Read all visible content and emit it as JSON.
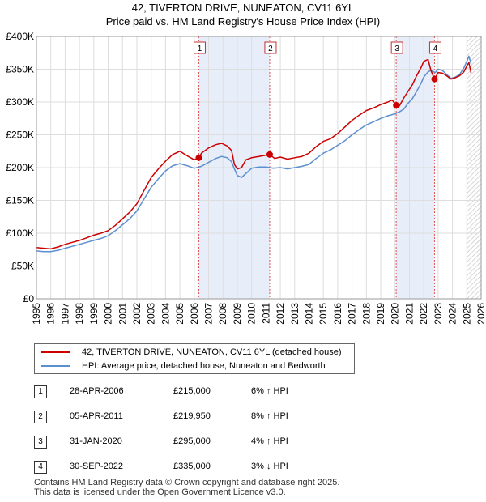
{
  "header": {
    "title": "42, TIVERTON DRIVE, NUNEATON, CV11 6YL",
    "subtitle": "Price paid vs. HM Land Registry's House Price Index (HPI)"
  },
  "chart_data": {
    "type": "line",
    "title": "42, TIVERTON DRIVE, NUNEATON, CV11 6YL",
    "subtitle": "Price paid vs. HM Land Registry's House Price Index (HPI)",
    "xlabel": "",
    "ylabel": "",
    "xlim": [
      1995,
      2026
    ],
    "ylim": [
      0,
      400000
    ],
    "y_ticks": [
      {
        "value": 0,
        "label": "£0"
      },
      {
        "value": 50000,
        "label": "£50K"
      },
      {
        "value": 100000,
        "label": "£100K"
      },
      {
        "value": 150000,
        "label": "£150K"
      },
      {
        "value": 200000,
        "label": "£200K"
      },
      {
        "value": 250000,
        "label": "£250K"
      },
      {
        "value": 300000,
        "label": "£300K"
      },
      {
        "value": 350000,
        "label": "£350K"
      },
      {
        "value": 400000,
        "label": "£400K"
      }
    ],
    "x_ticks": [
      "1995",
      "1996",
      "1997",
      "1998",
      "1999",
      "2000",
      "2001",
      "2002",
      "2003",
      "2004",
      "2005",
      "2006",
      "2007",
      "2008",
      "2009",
      "2010",
      "2011",
      "2012",
      "2013",
      "2014",
      "2015",
      "2016",
      "2017",
      "2018",
      "2019",
      "2020",
      "2021",
      "2022",
      "2023",
      "2024",
      "2025",
      "2026"
    ],
    "grid": true,
    "shaded_periods": [
      [
        2006.32,
        2011.26
      ],
      [
        2020.08,
        2022.75
      ]
    ],
    "future_hatch_from": 2025.0,
    "series": [
      {
        "name": "42, TIVERTON DRIVE, NUNEATON, CV11 6YL (detached house)",
        "color": "#cc0000",
        "x": [
          1995.0,
          1995.5,
          1996.0,
          1996.5,
          1997.0,
          1997.5,
          1998.0,
          1998.5,
          1999.0,
          1999.5,
          2000.0,
          2000.5,
          2001.0,
          2001.5,
          2002.0,
          2002.5,
          2003.0,
          2003.5,
          2004.0,
          2004.5,
          2005.0,
          2005.5,
          2006.0,
          2006.32,
          2006.5,
          2007.0,
          2007.5,
          2007.9,
          2008.3,
          2008.6,
          2008.8,
          2009.0,
          2009.3,
          2009.6,
          2010.0,
          2010.5,
          2011.0,
          2011.26,
          2011.6,
          2012.0,
          2012.5,
          2013.0,
          2013.5,
          2014.0,
          2014.5,
          2015.0,
          2015.5,
          2016.0,
          2016.5,
          2017.0,
          2017.5,
          2018.0,
          2018.5,
          2019.0,
          2019.5,
          2019.8,
          2020.08,
          2020.3,
          2020.6,
          2020.9,
          2021.2,
          2021.5,
          2021.8,
          2022.0,
          2022.3,
          2022.5,
          2022.75,
          2023.0,
          2023.3,
          2023.6,
          2023.9,
          2024.2,
          2024.5,
          2024.8,
          2025.0,
          2025.15,
          2025.3
        ],
        "values": [
          78000,
          77000,
          76000,
          79000,
          83000,
          86000,
          89000,
          93000,
          97000,
          100000,
          104000,
          112000,
          122000,
          132000,
          145000,
          165000,
          185000,
          198000,
          210000,
          220000,
          225000,
          218000,
          212000,
          215000,
          222000,
          230000,
          235000,
          237000,
          233000,
          226000,
          205000,
          198000,
          200000,
          212000,
          215000,
          217000,
          219000,
          219950,
          214000,
          216000,
          213000,
          215000,
          217000,
          222000,
          232000,
          240000,
          244000,
          252000,
          262000,
          272000,
          280000,
          287000,
          291000,
          296000,
          300000,
          303000,
          295000,
          294000,
          306000,
          316000,
          326000,
          340000,
          352000,
          362000,
          365000,
          348000,
          335000,
          345000,
          344000,
          340000,
          335000,
          337000,
          340000,
          346000,
          355000,
          360000,
          344000
        ]
      },
      {
        "name": "HPI: Average price, detached house, Nuneaton and Bedworth",
        "color": "#5b8fcf",
        "x": [
          1995.0,
          1995.5,
          1996.0,
          1996.5,
          1997.0,
          1997.5,
          1998.0,
          1998.5,
          1999.0,
          1999.5,
          2000.0,
          2000.5,
          2001.0,
          2001.5,
          2002.0,
          2002.5,
          2003.0,
          2003.5,
          2004.0,
          2004.5,
          2005.0,
          2005.5,
          2006.0,
          2006.5,
          2007.0,
          2007.5,
          2007.9,
          2008.3,
          2008.6,
          2008.8,
          2009.0,
          2009.3,
          2009.6,
          2010.0,
          2010.5,
          2011.0,
          2011.5,
          2012.0,
          2012.5,
          2013.0,
          2013.5,
          2014.0,
          2014.5,
          2015.0,
          2015.5,
          2016.0,
          2016.5,
          2017.0,
          2017.5,
          2018.0,
          2018.5,
          2019.0,
          2019.5,
          2020.0,
          2020.3,
          2020.6,
          2020.9,
          2021.2,
          2021.5,
          2021.8,
          2022.0,
          2022.3,
          2022.5,
          2022.8,
          2023.0,
          2023.3,
          2023.6,
          2023.9,
          2024.2,
          2024.5,
          2024.8,
          2025.0,
          2025.15,
          2025.3
        ],
        "values": [
          73000,
          72000,
          72000,
          74000,
          77000,
          80000,
          83000,
          86000,
          89000,
          92000,
          96000,
          104000,
          113000,
          122000,
          134000,
          152000,
          170000,
          183000,
          195000,
          203000,
          206000,
          203000,
          199000,
          202000,
          208000,
          214000,
          217000,
          215000,
          209000,
          198000,
          188000,
          185000,
          191000,
          199000,
          201000,
          201000,
          199000,
          200000,
          198000,
          200000,
          202000,
          205000,
          214000,
          222000,
          227000,
          234000,
          241000,
          250000,
          258000,
          265000,
          270000,
          275000,
          279000,
          282000,
          285000,
          289000,
          298000,
          305000,
          316000,
          328000,
          338000,
          346000,
          348000,
          345000,
          350000,
          348000,
          342000,
          336000,
          338000,
          342000,
          352000,
          362000,
          370000,
          358000
        ]
      }
    ],
    "sales": [
      {
        "id": "1",
        "date": "28-APR-2006",
        "price": "£215,000",
        "hpi": "6% ↑ HPI",
        "x": 2006.32,
        "y": 215000
      },
      {
        "id": "2",
        "date": "05-APR-2011",
        "price": "£219,950",
        "hpi": "8% ↑ HPI",
        "x": 2011.26,
        "y": 219950
      },
      {
        "id": "3",
        "date": "31-JAN-2020",
        "price": "£295,000",
        "hpi": "4% ↑ HPI",
        "x": 2020.08,
        "y": 295000
      },
      {
        "id": "4",
        "date": "30-SEP-2022",
        "price": "£335,000",
        "hpi": "3% ↓ HPI",
        "x": 2022.75,
        "y": 335000
      }
    ]
  },
  "legend": {
    "items": [
      {
        "label": "42, TIVERTON DRIVE, NUNEATON, CV11 6YL (detached house)",
        "color": "#cc0000"
      },
      {
        "label": "HPI: Average price, detached house, Nuneaton and Bedworth",
        "color": "#5b8fcf"
      }
    ]
  },
  "footer": {
    "line1": "Contains HM Land Registry data © Crown copyright and database right 2025.",
    "line2": "This data is licensed under the Open Government Licence v3.0."
  }
}
